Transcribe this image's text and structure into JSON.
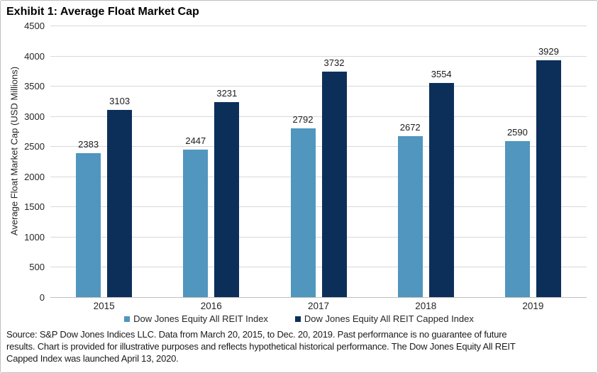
{
  "title": "Exhibit 1: Average Float Market Cap",
  "chart_data": {
    "type": "bar",
    "title": "Exhibit 1: Average Float Market Cap",
    "categories": [
      "2015",
      "2016",
      "2017",
      "2018",
      "2019"
    ],
    "series": [
      {
        "name": "Dow Jones Equity All REIT Index",
        "color": "#5096BE",
        "values": [
          2383,
          2447,
          2792,
          2672,
          2590
        ]
      },
      {
        "name": "Dow Jones Equity All REIT Capped Index",
        "color": "#0C2F5A",
        "values": [
          3103,
          3231,
          3732,
          3554,
          3929
        ]
      }
    ],
    "xlabel": "",
    "ylabel": "Average Float Market Cap (USD Millions)",
    "ylim": [
      0,
      4500
    ],
    "ytick_step": 500,
    "ytick_labels": [
      "0",
      "500",
      "1000",
      "1500",
      "2000",
      "2500",
      "3000",
      "3500",
      "4000",
      "4500"
    ],
    "grid": "horizontal",
    "legend_position": "bottom",
    "data_labels": true
  },
  "colors": {
    "series_1": "#5096BE",
    "series_2": "#0C2F5A",
    "gridline": "#D9D9D9",
    "axis_line": "#C0C0C0",
    "border": "#BFBFBF",
    "text": "#262626"
  },
  "footer": {
    "lines": [
      "Source: S&P Dow Jones Indices LLC. Data from March 20, 2015, to Dec. 20, 2019. Past performance is no guarantee of future",
      "results. Chart is provided for illustrative purposes and reflects hypothetical historical performance. The Dow Jones Equity All REIT",
      "Capped Index was launched April 13, 2020."
    ]
  }
}
